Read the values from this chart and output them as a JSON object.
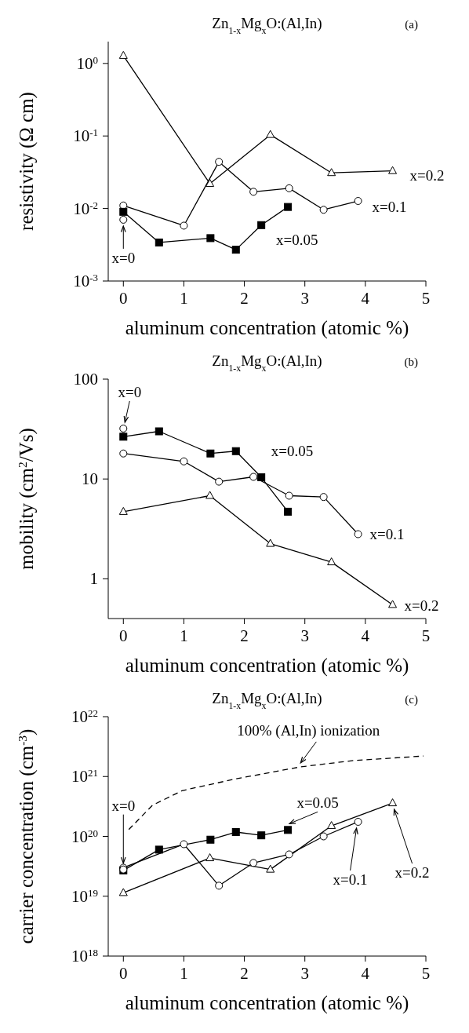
{
  "chart_data": [
    {
      "type": "line",
      "title": "Zn$_{1-x}$Mg$_{x}$O:(Al,In)",
      "xlabel": "aluminum concentration (atomic %)",
      "ylabel": "resistivity (Ω cm)",
      "annotations": [
        "(a)"
      ],
      "log": "y",
      "xlim": [
        -0.25,
        5
      ],
      "xticks": [
        0,
        1,
        2,
        3,
        4,
        5
      ],
      "ylim": [
        0.001,
        2
      ],
      "yticks": [
        {
          "value": 0.001,
          "label": "10$^{-3}$"
        },
        {
          "value": 0.01,
          "label": "10$^{-2}$"
        },
        {
          "value": 0.1,
          "label": "10$^{-1}$"
        },
        {
          "value": 1,
          "label": "10$^{0}$"
        }
      ],
      "series": [
        {
          "name": "x=0.2",
          "color": "#000000",
          "marker": "triangle",
          "x": [
            0,
            1.43,
            2.43,
            3.44,
            4.45
          ],
          "values": [
            1.28,
            0.022,
            0.104,
            0.031,
            0.033
          ]
        },
        {
          "name": "x=0.1",
          "color": "#000000",
          "marker": "circle",
          "x": [
            0,
            1.0,
            1.58,
            2.15,
            2.74,
            3.31,
            3.88
          ],
          "values": [
            0.011,
            0.0058,
            0.044,
            0.017,
            0.019,
            0.0096,
            0.0127
          ]
        },
        {
          "name": "x=0.05",
          "color": "#000000",
          "marker": "square",
          "x": [
            0,
            0.59,
            1.44,
            1.86,
            2.28,
            2.72
          ],
          "values": [
            0.009,
            0.0034,
            0.0039,
            0.0027,
            0.0059,
            0.0105
          ]
        },
        {
          "name": "x=0",
          "type": "scatter",
          "color": "#000000",
          "marker": "circle",
          "x": [
            0
          ],
          "values": [
            0.007
          ]
        }
      ]
    },
    {
      "type": "line",
      "title": "Zn$_{1-x}$Mg$_{x}$O:(Al,In)",
      "xlabel": "aluminum concentration (atomic %)",
      "ylabel": "mobility (cm$^{2}$/Vs)",
      "annotations": [
        "(b)"
      ],
      "log": "y",
      "xlim": [
        -0.25,
        5
      ],
      "xticks": [
        0,
        1,
        2,
        3,
        4,
        5
      ],
      "ylim": [
        0.4,
        100
      ],
      "yticks": [
        1,
        10,
        100
      ],
      "series": [
        {
          "name": "x=0.2",
          "color": "#000000",
          "marker": "triangle",
          "x": [
            0,
            1.43,
            2.43,
            3.44,
            4.45
          ],
          "values": [
            4.7,
            6.8,
            2.25,
            1.47,
            0.55
          ]
        },
        {
          "name": "x=0.1",
          "color": "#000000",
          "marker": "circle",
          "x": [
            0,
            1.0,
            1.58,
            2.15,
            2.74,
            3.31,
            3.88
          ],
          "values": [
            18,
            15,
            9.4,
            10.5,
            6.8,
            6.6,
            2.8
          ]
        },
        {
          "name": "x=0.05",
          "color": "#000000",
          "marker": "square",
          "x": [
            0,
            0.59,
            1.44,
            1.86,
            2.28,
            2.72
          ],
          "values": [
            26.5,
            30,
            18,
            19,
            10.4,
            4.7
          ]
        },
        {
          "name": "x=0",
          "type": "scatter",
          "color": "#000000",
          "marker": "circle",
          "x": [
            0
          ],
          "values": [
            32
          ]
        }
      ]
    },
    {
      "type": "line",
      "title": "Zn$_{1-x}$Mg$_{x}$O:(Al,In)",
      "xlabel": "aluminum concentration (atomic %)",
      "ylabel": "carrier concentration (cm$^{-3}$)",
      "annotations": [
        "(c)",
        {
          "text": "100% (Al,In) ionization",
          "x": 2.93,
          "y": 1.45e+21
        }
      ],
      "log": "y",
      "xlim": [
        -0.25,
        5
      ],
      "xticks": [
        0,
        1,
        2,
        3,
        4,
        5
      ],
      "ylim": [
        1e+18,
        1e+22
      ],
      "yticks": [
        {
          "value": 1e+18,
          "label": "10$^{18}$"
        },
        {
          "value": 1e+19,
          "label": "10$^{19}$"
        },
        {
          "value": 1e+20,
          "label": "10$^{20}$"
        },
        {
          "value": 1e+21,
          "label": "10$^{21}$"
        },
        {
          "value": 1e+22,
          "label": "10$^{22}$"
        }
      ],
      "series": [
        {
          "name": "x=0.2",
          "color": "#000000",
          "marker": "triangle",
          "x": [
            0,
            1.43,
            2.43,
            3.44,
            4.45
          ],
          "values": [
            1.14e+19,
            4.35e+19,
            2.8e+19,
            1.5e+20,
            3.6e+20
          ]
        },
        {
          "name": "x=0.1",
          "color": "#000000",
          "marker": "circle",
          "x": [
            0,
            1.0,
            1.58,
            2.15,
            2.74,
            3.31,
            3.88
          ],
          "values": [
            3e+19,
            7.4e+19,
            1.5e+19,
            3.6e+19,
            5e+19,
            1e+20,
            1.75e+20
          ]
        },
        {
          "name": "x=0.05",
          "color": "#000000",
          "marker": "square",
          "x": [
            0,
            0.59,
            1.44,
            1.86,
            2.28,
            2.72
          ],
          "values": [
            2.7e+19,
            6e+19,
            8.8e+19,
            1.18e+20,
            1.04e+20,
            1.28e+20
          ]
        },
        {
          "name": "x=0",
          "type": "scatter",
          "color": "#000000",
          "marker": "circle",
          "x": [
            0
          ],
          "values": [
            2.8e+19
          ]
        },
        {
          "color": "#000000",
          "marker": "none",
          "line_style": "dashed",
          "x": [
            0.09,
            0.48,
            0.97,
            1.85,
            2.93,
            3.81,
            4.96
          ],
          "values": [
            1.3e+20,
            3.3e+20,
            5.8e+20,
            9.1e+20,
            1.45e+21,
            1.85e+21,
            2.2e+21
          ]
        }
      ]
    }
  ]
}
